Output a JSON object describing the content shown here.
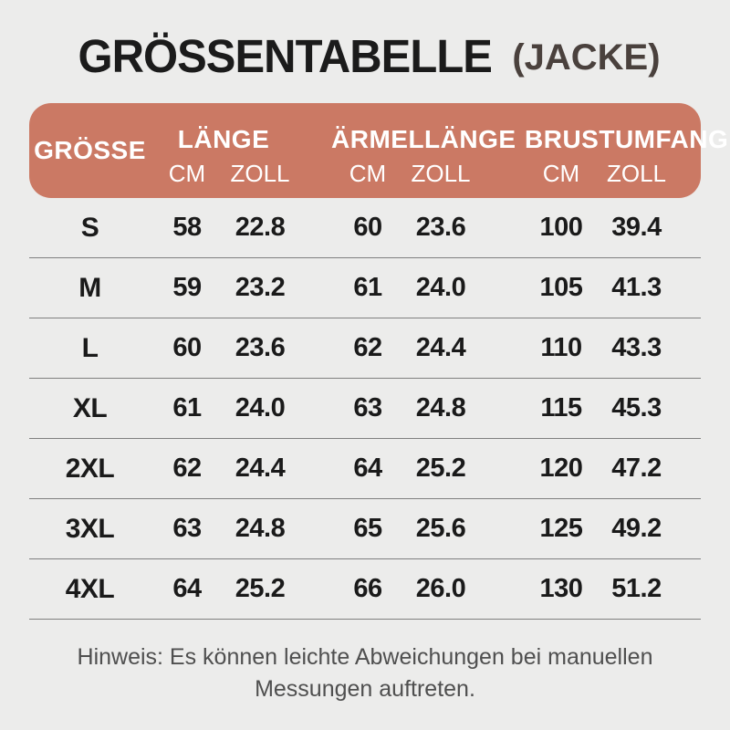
{
  "title": {
    "main": "GRÖSSENTABELLE",
    "suffix": "(JACKE)"
  },
  "colors": {
    "page_bg": "#ececeb",
    "header_bg": "#cb7964",
    "title_text": "#1b1b1b",
    "subtitle_text": "#4a413d",
    "divider": "#7f7f7f",
    "note_text": "#4f4f4f"
  },
  "table": {
    "size_header": "GRÖSSE",
    "groups": [
      {
        "label": "LÄNGE",
        "units": [
          "CM",
          "ZOLL"
        ]
      },
      {
        "label": "ÄRMELLÄNGE",
        "units": [
          "CM",
          "ZOLL"
        ]
      },
      {
        "label": "BRUSTUMFANG",
        "units": [
          "CM",
          "ZOLL"
        ]
      }
    ],
    "rows": [
      {
        "size": "S",
        "laenge_cm": "58",
        "laenge_zoll": "22.8",
        "aermel_cm": "60",
        "aermel_zoll": "23.6",
        "brust_cm": "100",
        "brust_zoll": "39.4"
      },
      {
        "size": "M",
        "laenge_cm": "59",
        "laenge_zoll": "23.2",
        "aermel_cm": "61",
        "aermel_zoll": "24.0",
        "brust_cm": "105",
        "brust_zoll": "41.3"
      },
      {
        "size": "L",
        "laenge_cm": "60",
        "laenge_zoll": "23.6",
        "aermel_cm": "62",
        "aermel_zoll": "24.4",
        "brust_cm": "110",
        "brust_zoll": "43.3"
      },
      {
        "size": "XL",
        "laenge_cm": "61",
        "laenge_zoll": "24.0",
        "aermel_cm": "63",
        "aermel_zoll": "24.8",
        "brust_cm": "115",
        "brust_zoll": "45.3"
      },
      {
        "size": "2XL",
        "laenge_cm": "62",
        "laenge_zoll": "24.4",
        "aermel_cm": "64",
        "aermel_zoll": "25.2",
        "brust_cm": "120",
        "brust_zoll": "47.2"
      },
      {
        "size": "3XL",
        "laenge_cm": "63",
        "laenge_zoll": "24.8",
        "aermel_cm": "65",
        "aermel_zoll": "25.6",
        "brust_cm": "125",
        "brust_zoll": "49.2"
      },
      {
        "size": "4XL",
        "laenge_cm": "64",
        "laenge_zoll": "25.2",
        "aermel_cm": "66",
        "aermel_zoll": "26.0",
        "brust_cm": "130",
        "brust_zoll": "51.2"
      }
    ]
  },
  "note": "Hinweis: Es können leichte Abweichungen bei manuellen Messungen auftreten."
}
